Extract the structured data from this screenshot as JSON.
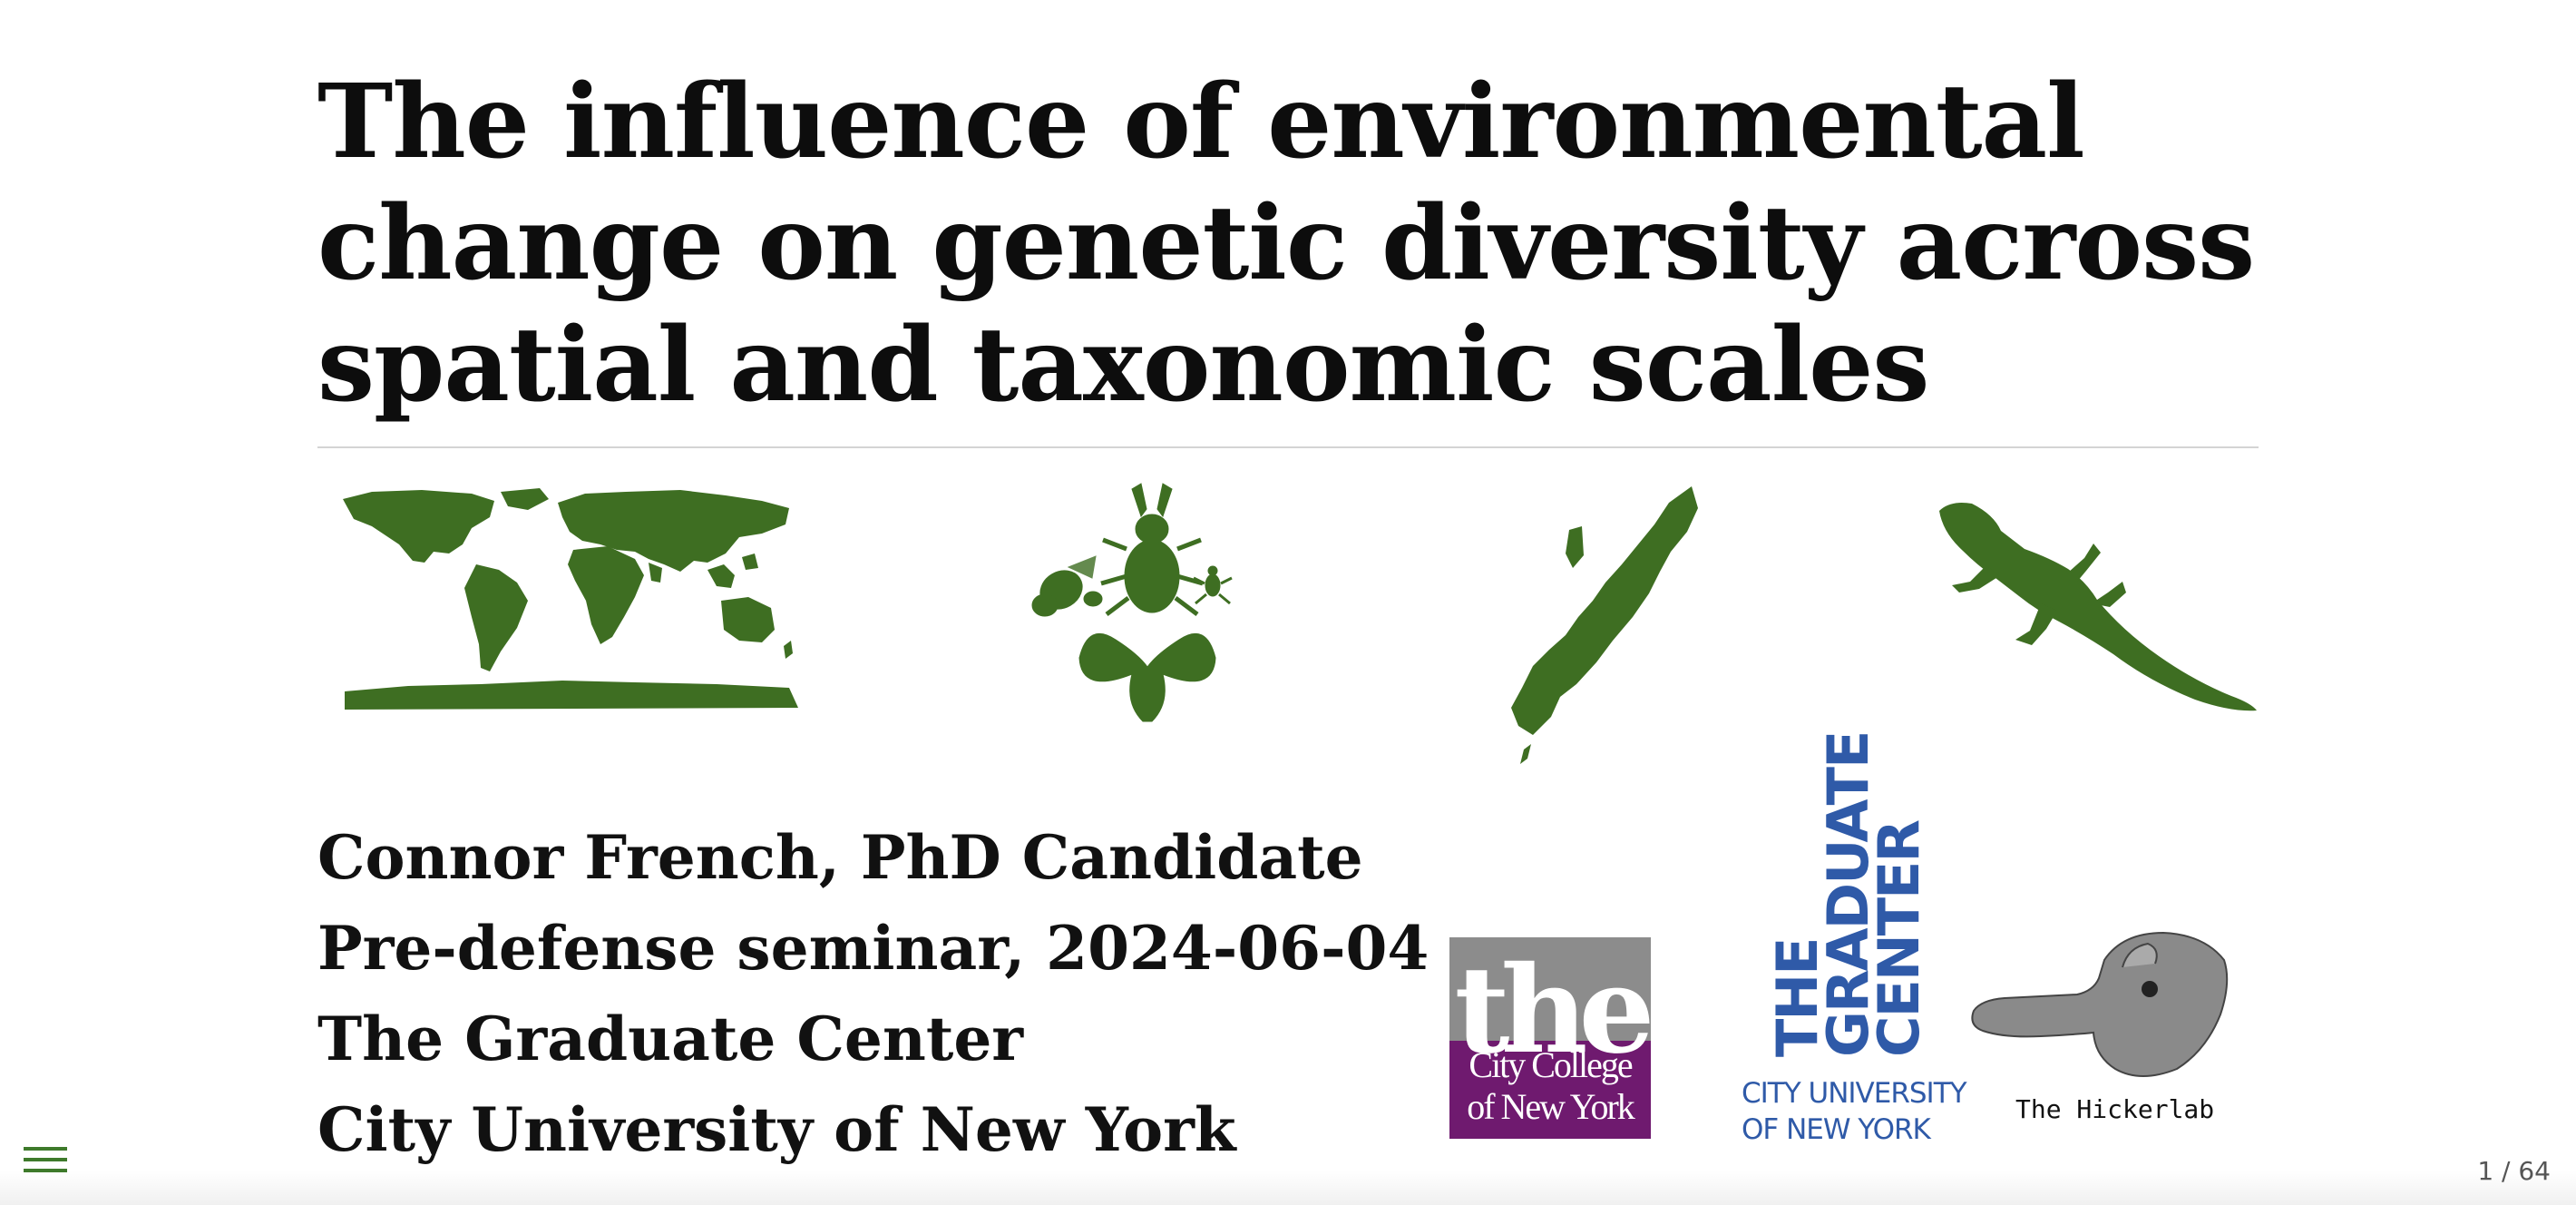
{
  "slide": {
    "title": "The influence of environmental change on genetic diversity across spatial and taxonomic scales",
    "author_lines": [
      "Connor French, PhD Candidate",
      "Pre-defense seminar, 2024-06-04",
      "The Graduate Center",
      "City University of New York"
    ]
  },
  "logos": {
    "ccny": {
      "the": "the",
      "line1": "City College",
      "line2": "of New York"
    },
    "graduate_center": {
      "line1": "THE",
      "line2": "GRADUATE",
      "line3": "CENTER",
      "sub1": "CITY UNIVERSITY",
      "sub2": "OF NEW YORK"
    },
    "hickerlab": {
      "label": "The Hickerlab"
    }
  },
  "controls": {
    "slide_counter": "1 / 64"
  },
  "colors": {
    "accent": "#3e7a2b",
    "silhouette": "#3e6e22",
    "ccny_purple": "#6f1a6f",
    "gc_blue": "#2f5aa8"
  },
  "icons": [
    "world-map-icon",
    "insects-icon",
    "atlantic-forest-map-icon",
    "lizard-icon",
    "menu-icon"
  ]
}
